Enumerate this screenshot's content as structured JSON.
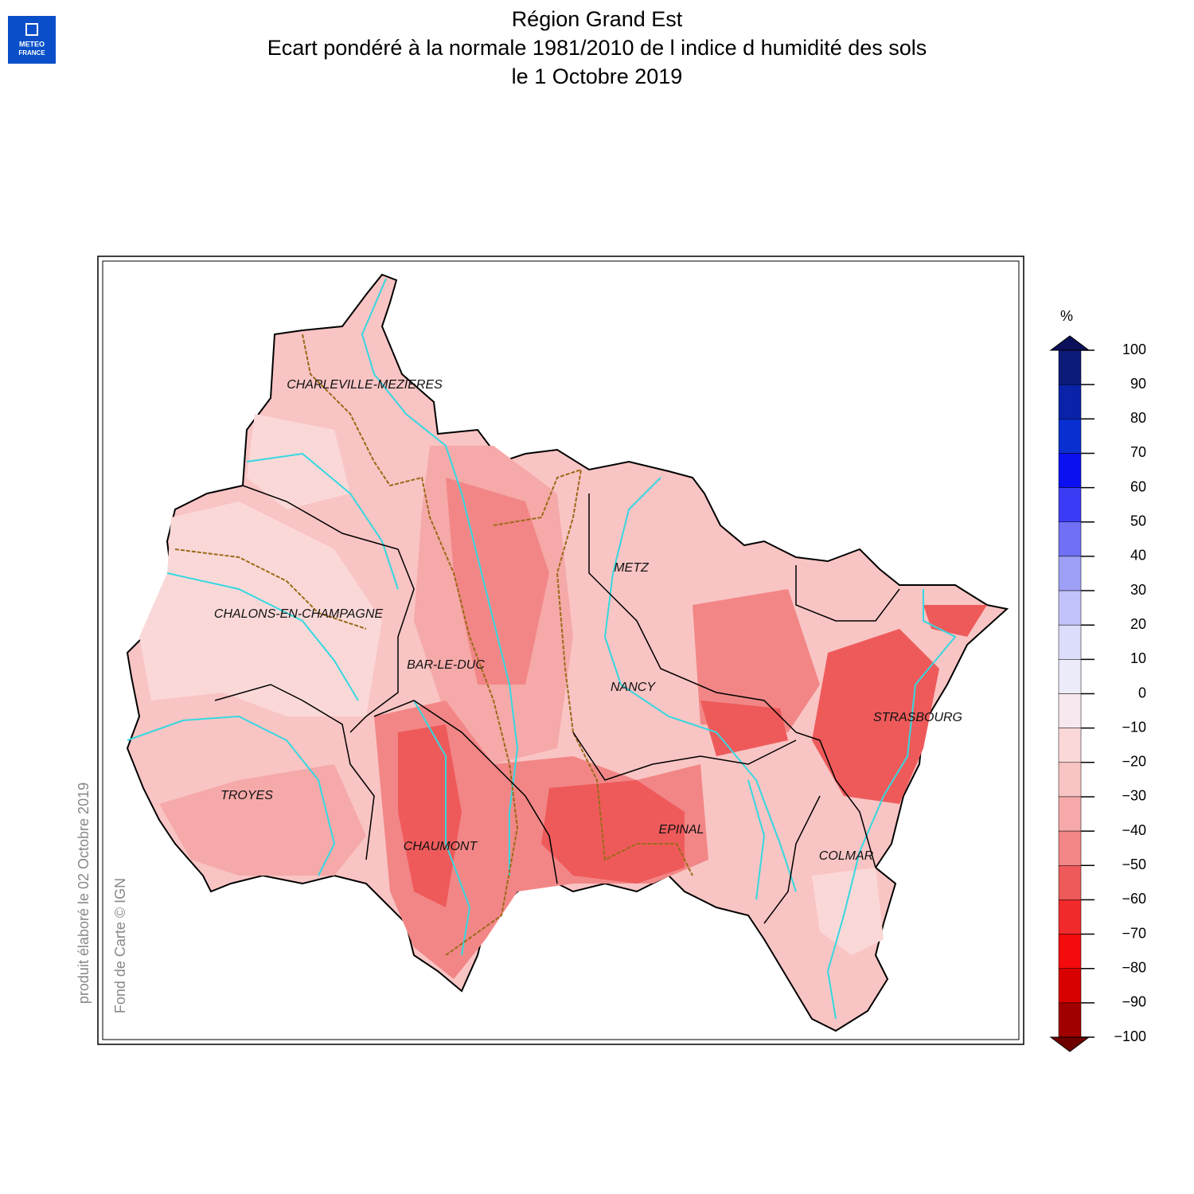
{
  "header": {
    "title_lines": [
      "Région Grand Est",
      "Ecart pondéré à la normale 1981/2010 de l indice d humidité des sols",
      "le 1 Octobre 2019"
    ]
  },
  "logo": [
    "METEO",
    "FRANCE"
  ],
  "side_notes": [
    "produit élaboré le 02 Octobre 2019",
    "Fond de Carte © IGN"
  ],
  "cities": [
    "CHARLEVILLE-MEZIERES",
    "METZ",
    "CHALONS-EN-CHAMPAGNE",
    "BAR-LE-DUC",
    "NANCY",
    "STRASBOURG",
    "TROYES",
    "EPINAL",
    "CHAUMONT",
    "COLMAR"
  ],
  "colorbar": {
    "unit": "%",
    "ticks": [
      100,
      90,
      80,
      70,
      60,
      50,
      40,
      30,
      20,
      10,
      0,
      {
        "value": -10,
        "label": "−10"
      },
      {
        "value": -20,
        "label": "−20"
      },
      {
        "value": -30,
        "label": "−30"
      },
      {
        "value": -40,
        "label": "−40"
      },
      {
        "value": -50,
        "label": "−50"
      },
      {
        "value": -60,
        "label": "−60"
      },
      {
        "value": -70,
        "label": "−70"
      },
      {
        "value": -80,
        "label": "−80"
      },
      {
        "value": -90,
        "label": "−90"
      },
      {
        "value": -100,
        "label": "−100"
      }
    ],
    "colors": [
      "#0c1a78",
      "#0a22a8",
      "#0a2fd0",
      "#0a10f0",
      "#3a3cf5",
      "#6f70f5",
      "#9ea0f7",
      "#c2c3fa",
      "#dcdcfb",
      "#ecebfa",
      "#f7e8ef",
      "#fbd8d8",
      "#f9c4c4",
      "#f6a9a9",
      "#f28686",
      "#ee5a5a",
      "#f02a2a",
      "#f40b0b",
      "#d80000",
      "#a10000"
    ],
    "over_color": "#0a105a",
    "under_color": "#6e0000"
  }
}
